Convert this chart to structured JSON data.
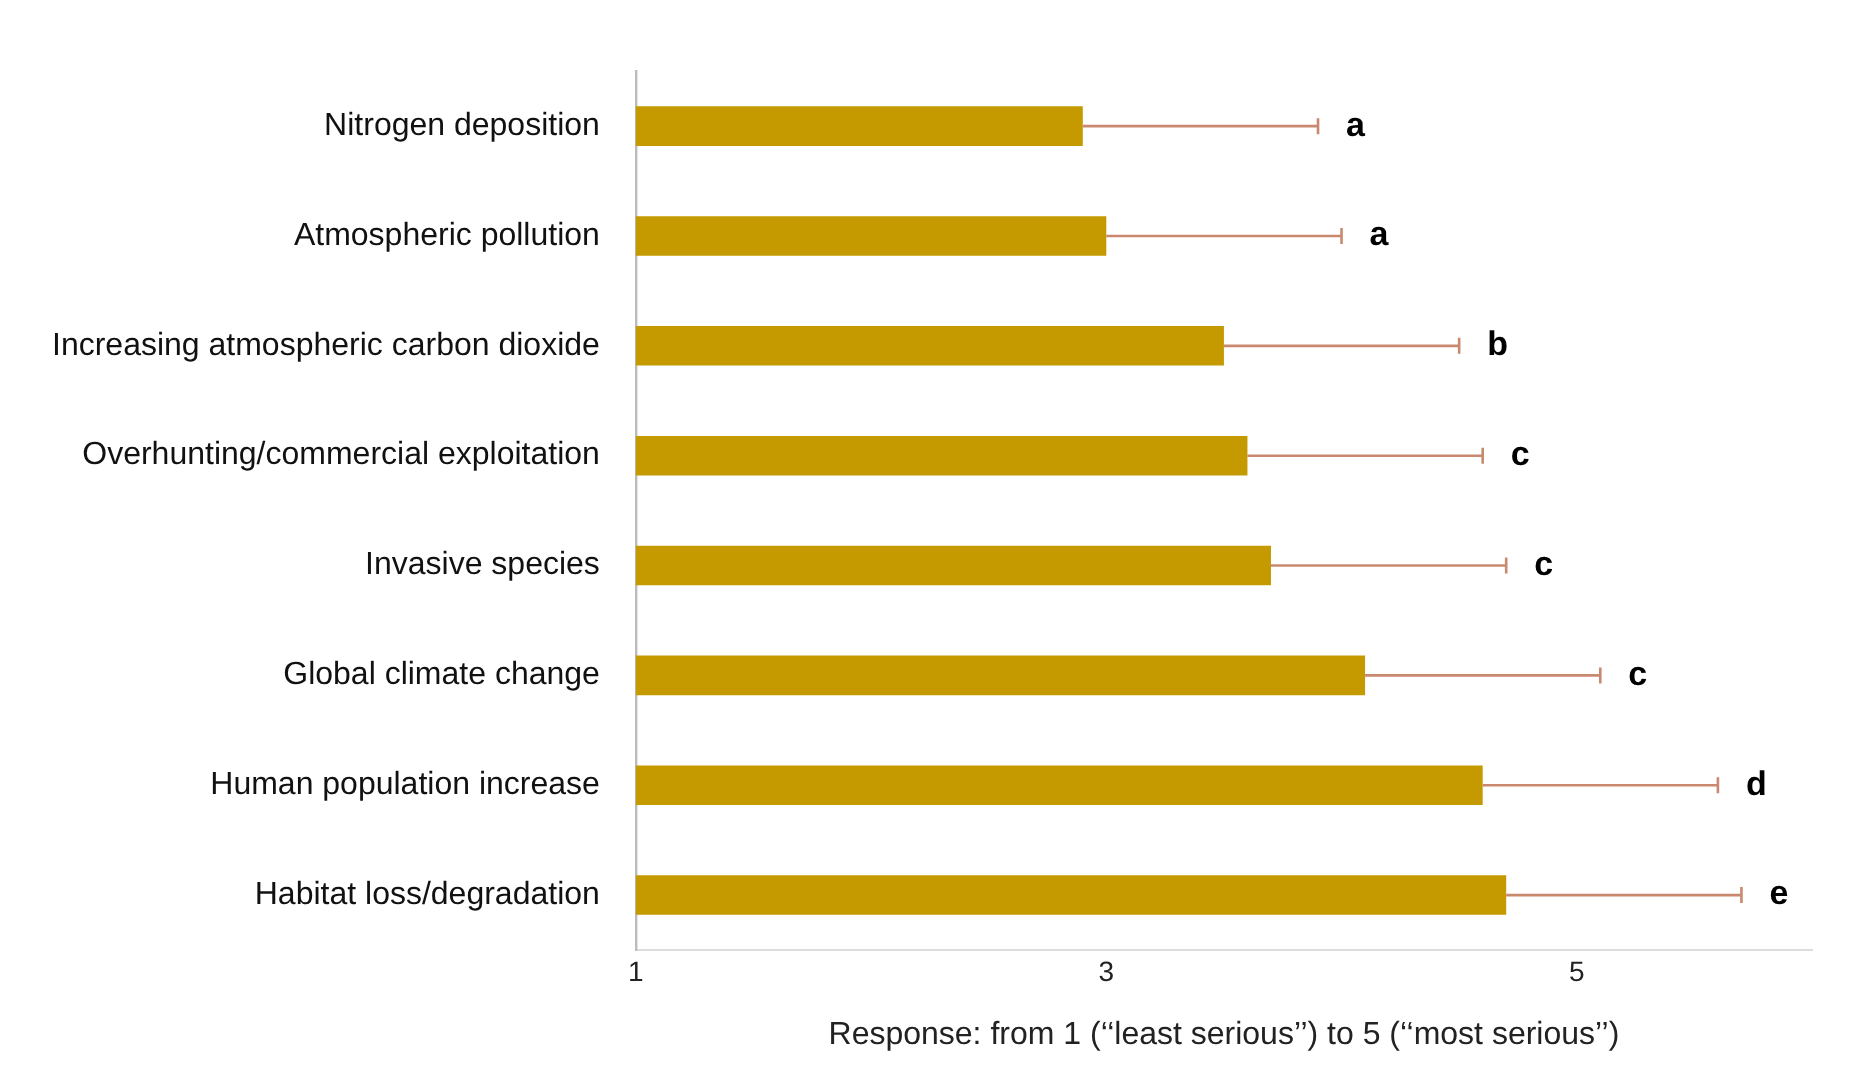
{
  "chart_data": {
    "type": "bar",
    "orientation": "horizontal",
    "xlabel": "Response: from 1 (‘‘least serious’’) to 5 (‘‘most serious’’)",
    "categories": [
      "Nitrogen deposition",
      "Atmospheric pollution",
      "Increasing atmospheric carbon dioxide",
      "Overhunting/commercial exploitation",
      "Invasive species",
      "Global climate change",
      "Human population increase",
      "Habitat loss/degradation"
    ],
    "values": [
      2.9,
      3.0,
      3.5,
      3.6,
      3.7,
      4.1,
      4.6,
      4.7
    ],
    "errors": [
      [
        2.9,
        3.9
      ],
      [
        3.0,
        4.0
      ],
      [
        3.5,
        4.5
      ],
      [
        3.6,
        4.6
      ],
      [
        3.7,
        4.7
      ],
      [
        4.1,
        5.1
      ],
      [
        4.6,
        5.6
      ],
      [
        4.7,
        5.7
      ]
    ],
    "color": "#c49a00",
    "xlim": [
      1,
      6
    ],
    "xticks": [
      1,
      3,
      5
    ],
    "grid": false,
    "legend": false,
    "annotations": [
      "a",
      "a",
      "b",
      "c",
      "c",
      "c",
      "d",
      "e"
    ]
  }
}
